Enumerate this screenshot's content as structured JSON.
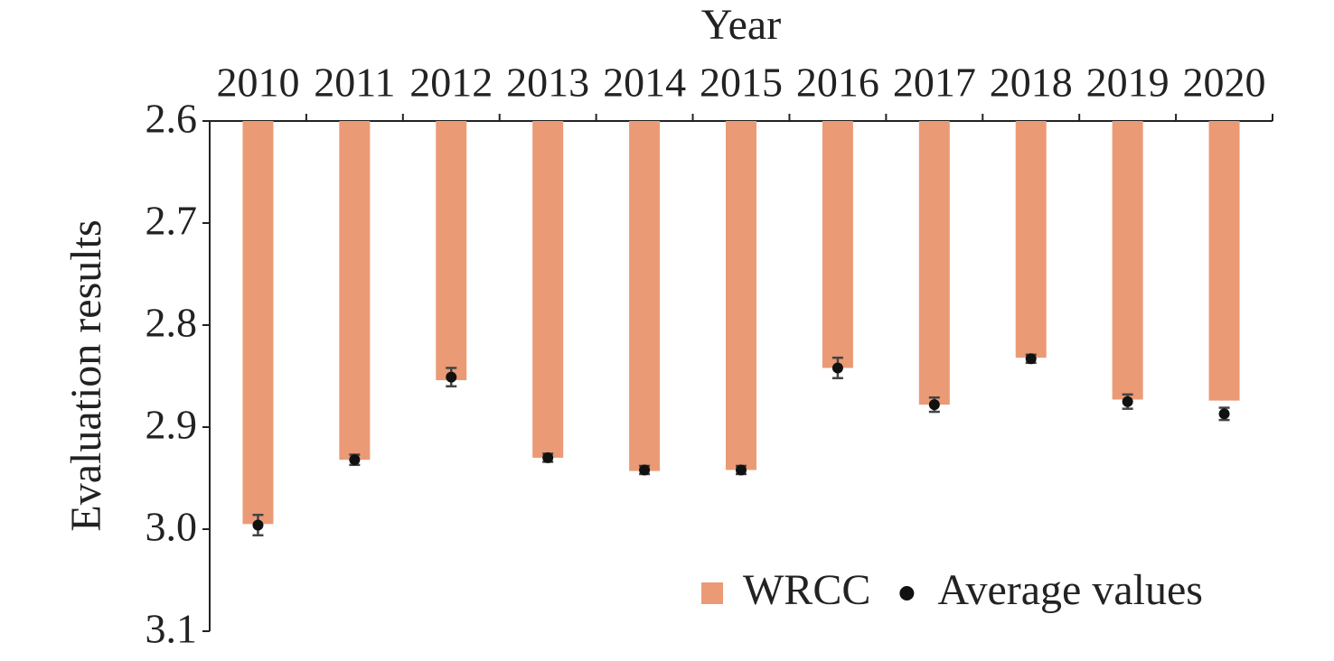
{
  "chart_data": {
    "type": "bar",
    "x_label": "Year",
    "y_label": "Evaluation results",
    "x_axis_position": "top",
    "y_inverted": true,
    "categories": [
      "2010",
      "2011",
      "2012",
      "2013",
      "2014",
      "2015",
      "2016",
      "2017",
      "2018",
      "2019",
      "2020"
    ],
    "series": [
      {
        "name": "WRCC",
        "type": "bar",
        "color": "#eb9a76",
        "values": [
          2.995,
          2.932,
          2.854,
          2.93,
          2.943,
          2.942,
          2.842,
          2.878,
          2.832,
          2.873,
          2.874
        ]
      },
      {
        "name": "Average values",
        "type": "scatter",
        "color": "#111111",
        "error_color": "#444444",
        "values": [
          2.996,
          2.932,
          2.851,
          2.93,
          2.942,
          2.942,
          2.842,
          2.878,
          2.833,
          2.875,
          2.887
        ],
        "errors": [
          0.01,
          0.005,
          0.009,
          0.004,
          0.004,
          0.004,
          0.01,
          0.007,
          0.004,
          0.007,
          0.006
        ]
      }
    ],
    "ylim": [
      2.6,
      3.1
    ],
    "yticks": [
      2.6,
      2.7,
      2.8,
      2.9,
      {
        "value": 3.0,
        "label": "3.0"
      },
      3.1
    ],
    "grid": false,
    "legend": "bottom-right"
  }
}
